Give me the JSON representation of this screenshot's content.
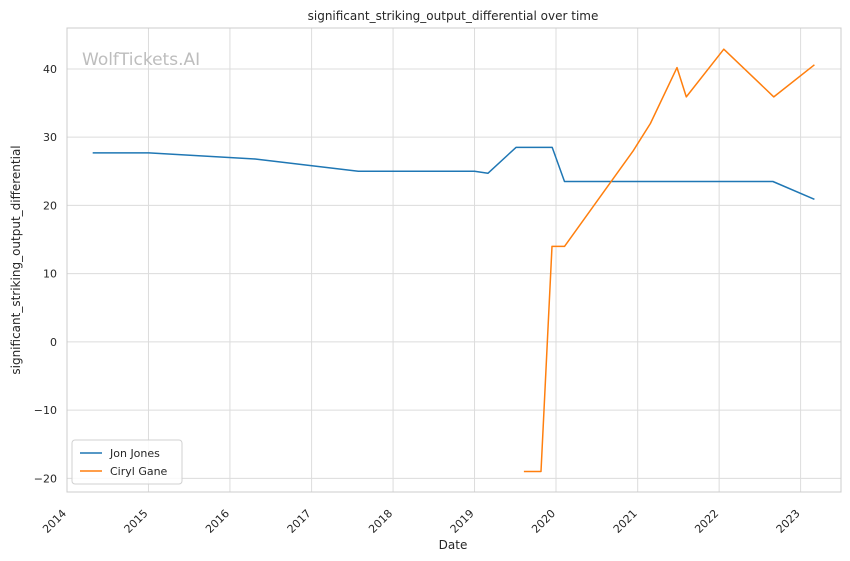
{
  "chart_data": {
    "type": "line",
    "title": "significant_striking_output_differential over time",
    "xlabel": "Date",
    "ylabel": "significant_striking_output_differential",
    "watermark": "WolfTickets.AI",
    "xlim": [
      "2014-01-01",
      "2023-07-01"
    ],
    "ylim": [
      -22,
      46
    ],
    "x_ticks": [
      "2014",
      "2015",
      "2016",
      "2017",
      "2018",
      "2019",
      "2020",
      "2021",
      "2022",
      "2023"
    ],
    "y_ticks": [
      -20,
      -10,
      0,
      10,
      20,
      30,
      40
    ],
    "y_tick_labels": [
      "−20",
      "−10",
      "0",
      "10",
      "20",
      "30",
      "40"
    ],
    "grid": true,
    "legend_position": "lower-left",
    "series": [
      {
        "name": "Jon Jones",
        "color": "#1f77b4",
        "points": [
          [
            "2014-04-26",
            27.7
          ],
          [
            "2015-01-03",
            27.7
          ],
          [
            "2016-04-23",
            26.8
          ],
          [
            "2017-07-29",
            25.0
          ],
          [
            "2019-01-01",
            25.0
          ],
          [
            "2019-03-02",
            24.7
          ],
          [
            "2019-07-06",
            28.5
          ],
          [
            "2019-12-15",
            28.5
          ],
          [
            "2020-02-08",
            23.5
          ],
          [
            "2022-08-30",
            23.5
          ],
          [
            "2023-03-04",
            20.9
          ]
        ]
      },
      {
        "name": "Ciryl Gane",
        "color": "#ff7f0e",
        "points": [
          [
            "2019-08-10",
            -19.0
          ],
          [
            "2019-10-26",
            -19.0
          ],
          [
            "2019-12-14",
            14.0
          ],
          [
            "2020-02-08",
            14.0
          ],
          [
            "2020-12-12",
            28.0
          ],
          [
            "2021-02-27",
            32.0
          ],
          [
            "2021-06-26",
            40.2
          ],
          [
            "2021-08-07",
            35.9
          ],
          [
            "2022-01-22",
            42.9
          ],
          [
            "2022-09-03",
            35.9
          ],
          [
            "2023-03-04",
            40.6
          ]
        ]
      }
    ]
  }
}
